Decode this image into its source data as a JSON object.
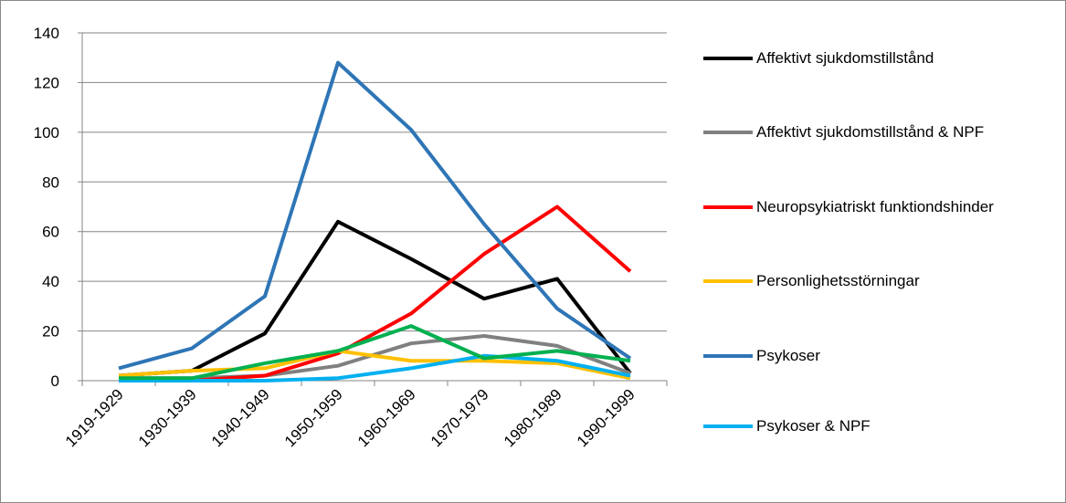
{
  "chart_data": {
    "type": "line",
    "categories": [
      "1919-1929",
      "1930-1939",
      "1940-1949",
      "1950-1959",
      "1960-1969",
      "1970-1979",
      "1980-1989",
      "1990-1999"
    ],
    "series": [
      {
        "name": "Affektivt sjukdomstillstånd",
        "color": "#000000",
        "values": [
          2,
          4,
          19,
          64,
          49,
          33,
          41,
          3
        ]
      },
      {
        "name": "Affektivt sjukdomstillstånd & NPF",
        "color": "#808080",
        "values": [
          1,
          1,
          2,
          6,
          15,
          18,
          14,
          3
        ]
      },
      {
        "name": "Neuropsykiatriskt funktiondshinder",
        "color": "#ff0000",
        "values": [
          0,
          0,
          2,
          11,
          27,
          51,
          70,
          44
        ]
      },
      {
        "name": "Personlighetsstörningar",
        "color": "#ffc000",
        "values": [
          2,
          4,
          5,
          12,
          8,
          8,
          7,
          1
        ]
      },
      {
        "name": "Psykoser",
        "color": "#2e75b6",
        "values": [
          5,
          13,
          34,
          128,
          101,
          63,
          29,
          9
        ]
      },
      {
        "name": "Psykoser & NPF",
        "color": "#00b0f0",
        "values": [
          0,
          0,
          0,
          1,
          5,
          10,
          8,
          2
        ]
      },
      {
        "color": "#00b050",
        "values": [
          1,
          1,
          7,
          12,
          22,
          9,
          12,
          8
        ]
      }
    ],
    "ylim": [
      0,
      140
    ],
    "yticks": [
      0,
      20,
      40,
      60,
      80,
      100,
      120,
      140
    ],
    "grid": true
  }
}
